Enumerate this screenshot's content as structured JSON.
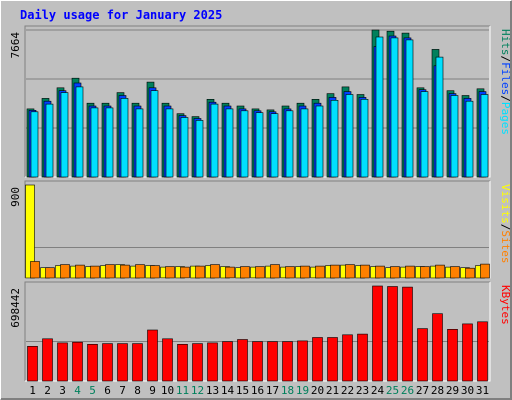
{
  "title": "Daily usage for January 2025",
  "colors": {
    "background": "#C0C0C0",
    "title": "#0000FF",
    "hits": "#00805C",
    "files": "#0040FF",
    "pages": "#00E0FF",
    "visits": "#FFFF00",
    "sites": "#FF8000",
    "kbytes": "#FF0000",
    "weekend_label": "#00805C",
    "weekday_label": "#000000"
  },
  "chart_data": [
    {
      "type": "bar",
      "panel": "top",
      "ymax_label": "7664",
      "ylim": [
        0,
        7664
      ],
      "right_label_parts": [
        {
          "text": "Hits",
          "color_key": "hits"
        },
        {
          "text": "/",
          "color_key": "weekday_label"
        },
        {
          "text": "Files",
          "color_key": "files"
        },
        {
          "text": "/",
          "color_key": "weekday_label"
        },
        {
          "text": "Pages",
          "color_key": "pages"
        }
      ],
      "series": [
        {
          "name": "Hits",
          "color_key": "hits",
          "values": [
            3550,
            4100,
            4650,
            5150,
            3850,
            3850,
            4400,
            3850,
            4950,
            3850,
            3300,
            3150,
            4050,
            3850,
            3700,
            3550,
            3500,
            3700,
            3850,
            4050,
            4350,
            4700,
            4300,
            7664,
            7600,
            7500,
            4650,
            6650,
            4500,
            4250,
            4600
          ]
        },
        {
          "name": "Files",
          "color_key": "files",
          "values": [
            3480,
            3950,
            4500,
            4900,
            3700,
            3700,
            4250,
            3700,
            4650,
            3700,
            3200,
            3050,
            3900,
            3700,
            3550,
            3450,
            3400,
            3550,
            3700,
            3850,
            4150,
            4450,
            4150,
            6800,
            7350,
            7250,
            4550,
            5800,
            4350,
            4100,
            4450
          ]
        },
        {
          "name": "Pages",
          "color_key": "pages",
          "values": [
            3400,
            3800,
            4400,
            4700,
            3600,
            3600,
            4100,
            3550,
            4500,
            3550,
            3100,
            2950,
            3800,
            3550,
            3450,
            3350,
            3300,
            3450,
            3550,
            3700,
            4000,
            4300,
            4050,
            7300,
            7250,
            7150,
            4450,
            6250,
            4250,
            3950,
            4300
          ]
        }
      ]
    },
    {
      "type": "bar",
      "panel": "middle",
      "ymax_label": "900",
      "ylim": [
        0,
        900
      ],
      "right_label_parts": [
        {
          "text": "Visits",
          "color_key": "visits"
        },
        {
          "text": "/",
          "color_key": "weekday_label"
        },
        {
          "text": "Sites",
          "color_key": "sites"
        }
      ],
      "series": [
        {
          "name": "Visits",
          "color_key": "visits",
          "values": [
            900,
            100,
            120,
            115,
            110,
            120,
            130,
            115,
            120,
            105,
            110,
            115,
            120,
            110,
            100,
            105,
            115,
            105,
            110,
            105,
            120,
            125,
            120,
            110,
            100,
            105,
            110,
            115,
            105,
            100,
            120
          ]
        },
        {
          "name": "Sites",
          "color_key": "sites",
          "values": [
            160,
            100,
            130,
            125,
            115,
            130,
            125,
            130,
            120,
            110,
            105,
            115,
            130,
            105,
            110,
            110,
            130,
            110,
            115,
            115,
            125,
            130,
            125,
            115,
            110,
            115,
            110,
            125,
            110,
            95,
            135
          ]
        }
      ]
    },
    {
      "type": "bar",
      "panel": "bottom",
      "ymax_label": "698442",
      "ylim": [
        0,
        698442
      ],
      "right_label_parts": [
        {
          "text": "KBytes",
          "color_key": "kbytes"
        }
      ],
      "series": [
        {
          "name": "KBytes",
          "color_key": "kbytes",
          "values": [
            255000,
            310000,
            280000,
            285000,
            270000,
            275000,
            275000,
            275000,
            375000,
            310000,
            270000,
            275000,
            280000,
            290000,
            305000,
            290000,
            290000,
            290000,
            295000,
            320000,
            320000,
            340000,
            345000,
            698442,
            695000,
            690000,
            385000,
            495000,
            380000,
            420000,
            435000
          ]
        }
      ]
    }
  ],
  "days": [
    "1",
    "2",
    "3",
    "4",
    "5",
    "6",
    "7",
    "8",
    "9",
    "10",
    "11",
    "12",
    "13",
    "14",
    "15",
    "16",
    "17",
    "18",
    "19",
    "20",
    "21",
    "22",
    "23",
    "24",
    "25",
    "26",
    "27",
    "28",
    "29",
    "30",
    "31"
  ],
  "weekend_days": [
    4,
    5,
    11,
    12,
    18,
    19,
    25,
    26
  ]
}
